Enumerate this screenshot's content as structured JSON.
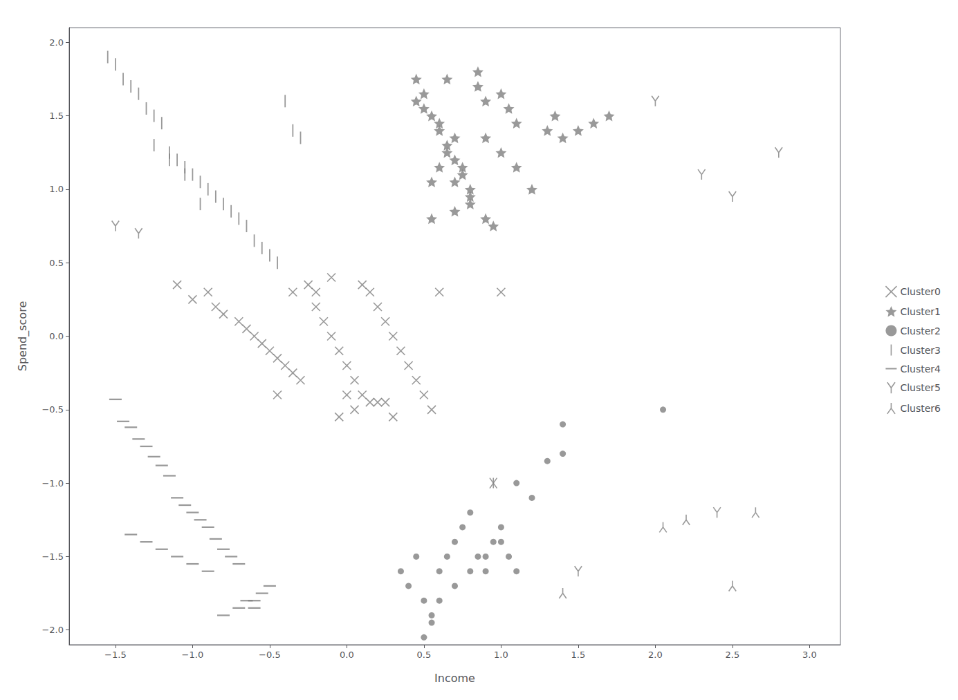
{
  "chart_data": {
    "type": "scatter",
    "xlabel": "Income",
    "ylabel": "Spend_score",
    "xlim": [
      -1.8,
      3.2
    ],
    "ylim": [
      -2.1,
      2.1
    ],
    "xticks": [
      {
        "value": -1.5,
        "label": "−1.5"
      },
      {
        "value": -1.0,
        "label": "−1.0"
      },
      {
        "value": -0.5,
        "label": "−0.5"
      },
      {
        "value": 0.0,
        "label": "0.0"
      },
      {
        "value": 0.5,
        "label": "0.5"
      },
      {
        "value": 1.0,
        "label": "1.0"
      },
      {
        "value": 1.5,
        "label": "1.5"
      },
      {
        "value": 2.0,
        "label": "2.0"
      },
      {
        "value": 2.5,
        "label": "2.5"
      },
      {
        "value": 3.0,
        "label": "3.0"
      }
    ],
    "yticks": [
      {
        "value": -2.0,
        "label": "−2.0"
      },
      {
        "value": -1.5,
        "label": "−1.5"
      },
      {
        "value": -1.0,
        "label": "−1.0"
      },
      {
        "value": -0.5,
        "label": "−0.5"
      },
      {
        "value": 0.0,
        "label": "0.0"
      },
      {
        "value": 0.5,
        "label": "0.5"
      },
      {
        "value": 1.0,
        "label": "1.0"
      },
      {
        "value": 1.5,
        "label": "1.5"
      },
      {
        "value": 2.0,
        "label": "2.0"
      }
    ],
    "grid": false,
    "legend": "right",
    "color": "#808080",
    "series": [
      {
        "name": "Cluster0",
        "marker": "x",
        "x": [
          -1.1,
          -1.0,
          -0.9,
          -0.85,
          -0.8,
          -0.7,
          -0.65,
          -0.6,
          -0.55,
          -0.5,
          -0.45,
          -0.4,
          -0.35,
          -0.3,
          -0.25,
          -0.2,
          -0.15,
          -0.1,
          -0.05,
          0.0,
          0.05,
          0.1,
          0.15,
          0.2,
          0.25,
          0.3,
          0.35,
          0.4,
          0.45,
          0.5,
          0.15,
          0.05,
          -0.05,
          0.1,
          0.2,
          0.3,
          -0.1,
          -0.2,
          0.25,
          0.0,
          -0.35,
          -0.45,
          0.55,
          0.6,
          1.0
        ],
        "values": [
          0.35,
          0.25,
          0.3,
          0.2,
          0.15,
          0.1,
          0.05,
          0.0,
          -0.05,
          -0.1,
          -0.15,
          -0.2,
          -0.25,
          -0.3,
          0.35,
          0.2,
          0.1,
          0.0,
          -0.1,
          -0.2,
          -0.3,
          -0.4,
          0.3,
          0.2,
          0.1,
          0.0,
          -0.1,
          -0.2,
          -0.3,
          -0.4,
          -0.45,
          -0.5,
          -0.55,
          0.35,
          -0.45,
          -0.55,
          0.4,
          0.3,
          -0.45,
          -0.4,
          0.3,
          -0.4,
          -0.5,
          0.3,
          0.3
        ]
      },
      {
        "name": "Cluster1",
        "marker": "star",
        "x": [
          0.45,
          0.5,
          0.55,
          0.6,
          0.65,
          0.7,
          0.75,
          0.8,
          0.85,
          0.9,
          0.5,
          0.6,
          0.7,
          0.65,
          0.75,
          0.55,
          0.8,
          0.7,
          0.9,
          0.95,
          0.85,
          1.0,
          1.05,
          1.1,
          0.6,
          0.7,
          0.8,
          0.9,
          1.0,
          1.1,
          1.2,
          1.3,
          1.35,
          0.55,
          1.4,
          1.5,
          1.6,
          1.7,
          0.65,
          0.45
        ],
        "values": [
          1.75,
          1.65,
          1.5,
          1.4,
          1.3,
          1.2,
          1.1,
          1.0,
          1.8,
          1.6,
          1.55,
          1.45,
          1.35,
          1.25,
          1.15,
          1.05,
          0.9,
          0.85,
          0.8,
          0.75,
          1.7,
          1.65,
          1.55,
          1.45,
          1.15,
          1.05,
          0.95,
          1.35,
          1.25,
          1.15,
          1.0,
          1.4,
          1.5,
          0.8,
          1.35,
          1.4,
          1.45,
          1.5,
          1.75,
          1.6
        ]
      },
      {
        "name": "Cluster2",
        "marker": "circle",
        "x": [
          0.35,
          0.4,
          0.45,
          0.5,
          0.55,
          0.6,
          0.65,
          0.7,
          0.75,
          0.8,
          0.85,
          0.9,
          0.95,
          1.0,
          1.05,
          1.1,
          1.2,
          1.3,
          1.4,
          0.5,
          0.55,
          0.6,
          0.7,
          0.8,
          0.9,
          1.0,
          1.1,
          1.4,
          2.05
        ],
        "values": [
          -1.6,
          -1.7,
          -1.5,
          -1.8,
          -1.9,
          -1.6,
          -1.5,
          -1.4,
          -1.3,
          -1.2,
          -1.5,
          -1.6,
          -1.4,
          -1.3,
          -1.5,
          -1.6,
          -1.1,
          -0.85,
          -0.8,
          -2.05,
          -1.95,
          -1.8,
          -1.7,
          -1.6,
          -1.5,
          -1.4,
          -1.0,
          -0.6,
          -0.5
        ]
      },
      {
        "name": "Cluster3",
        "marker": "vline",
        "x": [
          -1.55,
          -1.5,
          -1.45,
          -1.4,
          -1.35,
          -1.3,
          -1.25,
          -1.2,
          -1.15,
          -1.1,
          -1.05,
          -1.0,
          -0.95,
          -0.9,
          -0.85,
          -0.8,
          -0.75,
          -0.7,
          -0.65,
          -0.6,
          -0.55,
          -0.5,
          -0.45,
          -0.4,
          -0.35,
          -0.3,
          -1.25,
          -1.15,
          -1.05,
          -0.95
        ],
        "values": [
          1.9,
          1.85,
          1.75,
          1.7,
          1.65,
          1.55,
          1.5,
          1.45,
          1.25,
          1.2,
          1.15,
          1.1,
          1.05,
          1.0,
          0.95,
          0.9,
          0.85,
          0.8,
          0.75,
          0.65,
          0.6,
          0.55,
          0.5,
          1.6,
          1.4,
          1.35,
          1.3,
          1.2,
          1.1,
          0.9
        ]
      },
      {
        "name": "Cluster4",
        "marker": "hline",
        "x": [
          -1.5,
          -1.45,
          -1.4,
          -1.35,
          -1.3,
          -1.25,
          -1.2,
          -1.15,
          -1.1,
          -1.05,
          -1.0,
          -0.95,
          -0.9,
          -0.85,
          -0.8,
          -0.75,
          -0.7,
          -0.65,
          -0.6,
          -0.55,
          -1.3,
          -1.2,
          -1.1,
          -1.0,
          -0.9,
          -0.8,
          -0.7,
          -0.6,
          -0.5,
          -1.4
        ],
        "values": [
          -0.43,
          -0.58,
          -0.62,
          -0.7,
          -0.75,
          -0.82,
          -0.88,
          -0.95,
          -1.1,
          -1.15,
          -1.2,
          -1.25,
          -1.3,
          -1.38,
          -1.45,
          -1.5,
          -1.55,
          -1.8,
          -1.85,
          -1.75,
          -1.4,
          -1.45,
          -1.5,
          -1.55,
          -1.6,
          -1.9,
          -1.85,
          -1.8,
          -1.7,
          -1.35
        ]
      },
      {
        "name": "Cluster5",
        "marker": "tri_up",
        "x": [
          -1.5,
          -1.35,
          0.95,
          1.5,
          2.0,
          2.3,
          2.5,
          2.8,
          2.4
        ],
        "values": [
          0.75,
          0.7,
          -1.0,
          -1.6,
          1.6,
          1.1,
          0.95,
          1.25,
          -1.2
        ]
      },
      {
        "name": "Cluster6",
        "marker": "tri_down",
        "x": [
          2.05,
          2.2,
          2.5,
          2.65,
          0.95,
          1.4
        ],
        "values": [
          -1.3,
          -1.25,
          -1.7,
          -1.2,
          -1.0,
          -1.75
        ]
      }
    ]
  }
}
